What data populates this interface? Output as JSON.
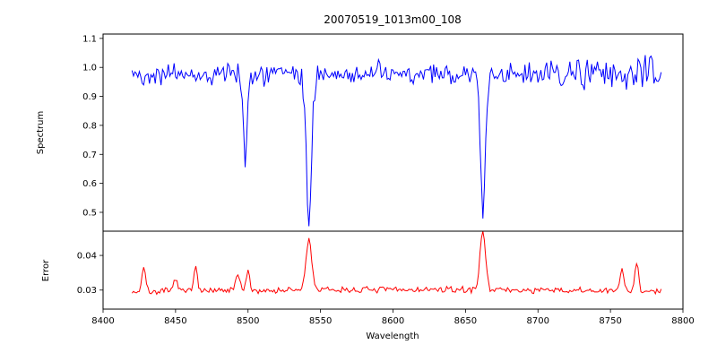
{
  "chart_data": {
    "type": "line",
    "title": "20070519_1013m00_108",
    "xlabel": "Wavelength",
    "x_range": [
      8400,
      8800
    ],
    "x_ticks": [
      8400,
      8450,
      8500,
      8550,
      8600,
      8650,
      8700,
      8750,
      8800
    ],
    "x_tick_labels": [
      "8400",
      "8450",
      "8500",
      "8550",
      "8600",
      "8650",
      "8700",
      "8750",
      "8800"
    ],
    "data_x_range": [
      8420,
      8785
    ],
    "grid": false,
    "legend": "none",
    "panels": [
      {
        "ylabel": "Spectrum",
        "ylim": [
          0.435,
          1.115
        ],
        "y_ticks": [
          0.5,
          0.6,
          0.7,
          0.8,
          0.9,
          1.0,
          1.1
        ],
        "y_tick_labels": [
          "0.5",
          "0.6",
          "0.7",
          "0.8",
          "0.9",
          "1.0",
          "1.1"
        ],
        "series": {
          "name": "spectrum",
          "color": "#0000ff",
          "continuum": 0.975,
          "noise": 0.018,
          "noise_boost": {
            "from": 8700,
            "factor": 1.6
          },
          "absorption_lines": [
            {
              "center": 8498,
              "depth": 0.315,
              "sigma": 1.2
            },
            {
              "center": 8542,
              "depth": 0.505,
              "sigma": 1.8
            },
            {
              "center": 8662,
              "depth": 0.49,
              "sigma": 1.6
            }
          ]
        }
      },
      {
        "ylabel": "Error",
        "ylim": [
          0.0245,
          0.047
        ],
        "y_ticks": [
          0.03,
          0.04
        ],
        "y_tick_labels": [
          "0.03",
          "0.04"
        ],
        "series": {
          "name": "error",
          "color": "#ff0000",
          "baseline": 0.0292,
          "noise": 0.00045,
          "baseline_bump": {
            "center": 8610,
            "height": 0.0009,
            "sigma": 130
          },
          "peaks": [
            {
              "center": 8428,
              "height": 0.0075,
              "sigma": 1.2
            },
            {
              "center": 8450,
              "height": 0.004,
              "sigma": 1.2
            },
            {
              "center": 8464,
              "height": 0.0078,
              "sigma": 1.2
            },
            {
              "center": 8493,
              "height": 0.0045,
              "sigma": 1.5
            },
            {
              "center": 8500,
              "height": 0.0052,
              "sigma": 1.2
            },
            {
              "center": 8542,
              "height": 0.0145,
              "sigma": 2.0
            },
            {
              "center": 8662,
              "height": 0.0165,
              "sigma": 2.0
            },
            {
              "center": 8758,
              "height": 0.0065,
              "sigma": 1.3
            },
            {
              "center": 8768,
              "height": 0.0085,
              "sigma": 1.3
            }
          ]
        }
      }
    ]
  }
}
